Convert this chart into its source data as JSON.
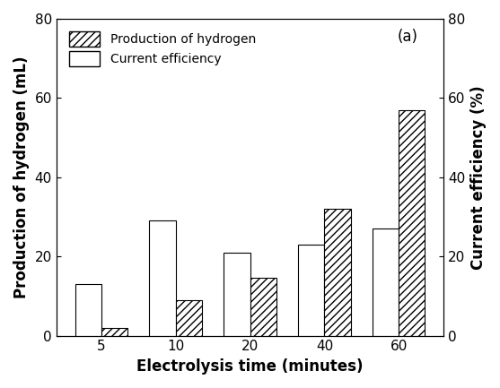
{
  "times": [
    "5",
    "10",
    "20",
    "40",
    "60"
  ],
  "hydrogen": [
    2.0,
    9.0,
    14.5,
    32.0,
    57.0
  ],
  "efficiency": [
    13.0,
    29.0,
    21.0,
    23.0,
    27.0
  ],
  "ylabel_left": "Production of hydrogen (mL)",
  "ylabel_right": "Current efficiency (%)",
  "xlabel": "Electrolysis time (minutes)",
  "ylim_left": [
    0,
    80
  ],
  "ylim_right": [
    0,
    80
  ],
  "yticks_left": [
    0,
    20,
    40,
    60,
    80
  ],
  "yticks_right": [
    0,
    20,
    40,
    60,
    80
  ],
  "legend_hydrogen": "Production of hydrogen",
  "legend_efficiency": "Current efficiency",
  "annotation": "(a)",
  "bar_width": 0.35,
  "hatch_pattern": "////",
  "bg_color": "#ffffff",
  "bar_edge_color": "#000000",
  "label_fontsize": 12,
  "tick_fontsize": 11,
  "legend_fontsize": 10
}
